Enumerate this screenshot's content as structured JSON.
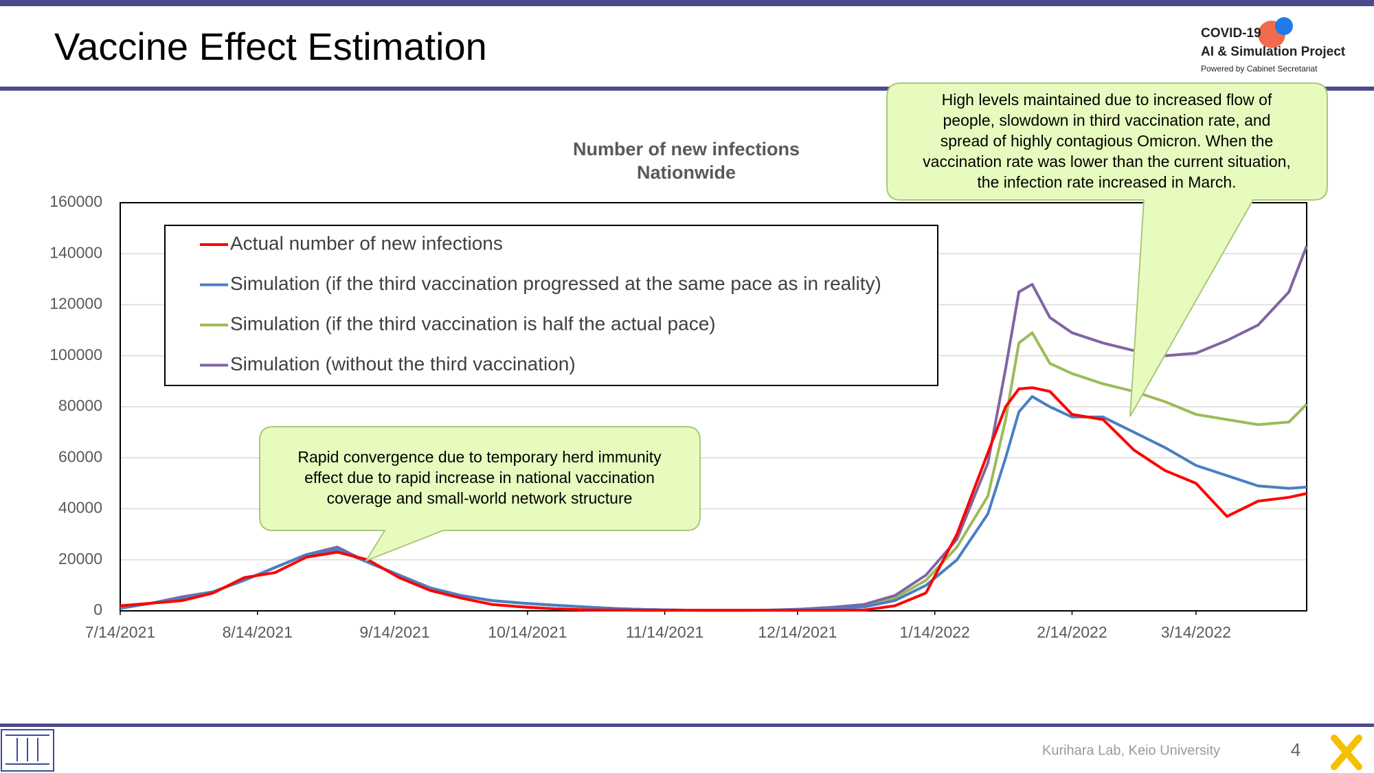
{
  "header": {
    "title": "Vaccine Effect Estimation",
    "logo": [
      "COVID-19",
      "AI & Simulation Project",
      "Powered by Cabinet Secretariat"
    ]
  },
  "footer": {
    "credit": "Kurihara Lab, Keio University",
    "page": "4"
  },
  "annotations": [
    [
      "Rapid convergence due to temporary herd immunity",
      "effect due to rapid increase in national vaccination",
      "coverage and small-world network structure"
    ],
    [
      "High levels maintained due to increased flow of",
      "people, slowdown in third vaccination rate, and",
      "spread of highly contagious Omicron. When the",
      "vaccination rate was lower than the current situation,",
      "the infection rate increased in March."
    ]
  ],
  "chart_data": {
    "type": "line",
    "title": [
      "Number of new infections",
      "Nationwide"
    ],
    "x": [
      "7/14/2021",
      "7/21/2021",
      "7/28/2021",
      "8/4/2021",
      "8/11/2021",
      "8/18/2021",
      "8/25/2021",
      "9/1/2021",
      "9/8/2021",
      "9/15/2021",
      "9/22/2021",
      "9/29/2021",
      "10/6/2021",
      "10/13/2021",
      "10/20/2021",
      "10/27/2021",
      "11/3/2021",
      "11/10/2021",
      "11/17/2021",
      "11/24/2021",
      "12/1/2021",
      "12/8/2021",
      "12/15/2021",
      "12/22/2021",
      "12/29/2021",
      "1/5/2022",
      "1/12/2022",
      "1/19/2022",
      "1/26/2022",
      "1/30/2022",
      "2/2/2022",
      "2/5/2022",
      "2/9/2022",
      "2/14/2022",
      "2/21/2022",
      "2/28/2022",
      "3/7/2022",
      "3/14/2022",
      "3/21/2022",
      "3/28/2022",
      "4/4/2022",
      "4/8/2022"
    ],
    "series": [
      {
        "name": "Actual number of new infections",
        "color": "#ff0000",
        "values": [
          2000,
          3000,
          4000,
          7000,
          13000,
          15000,
          21000,
          23000,
          20000,
          13000,
          8000,
          5000,
          2500,
          1500,
          800,
          400,
          300,
          200,
          200,
          200,
          200,
          200,
          200,
          200,
          300,
          2000,
          7000,
          30000,
          62000,
          80000,
          87000,
          87500,
          86000,
          77000,
          75000,
          63000,
          55000,
          50000,
          37000,
          43000,
          44500,
          46000
        ]
      },
      {
        "name": "Simulation (if the third vaccination progressed at the same pace as in reality)",
        "color": "#4a7fc1",
        "values": [
          1000,
          3000,
          5000,
          7500,
          12000,
          17000,
          22000,
          24000,
          19000,
          14000,
          9000,
          6000,
          4000,
          3000,
          2200,
          1500,
          900,
          500,
          300,
          200,
          200,
          300,
          500,
          1000,
          1500,
          4000,
          10000,
          20000,
          38000,
          60000,
          78000,
          84000,
          80000,
          76000,
          76000,
          70000,
          64000,
          57000,
          53000,
          49000,
          48000,
          48500
        ]
      },
      {
        "name": "Simulation (if the third vaccination is half the actual pace)",
        "color": "#9bbb59",
        "values": [
          1000,
          3000,
          5000,
          7500,
          12000,
          17000,
          22000,
          24000,
          19000,
          14000,
          9000,
          6000,
          4000,
          3000,
          2200,
          1500,
          900,
          500,
          300,
          200,
          200,
          300,
          600,
          1200,
          2000,
          5000,
          12000,
          25000,
          45000,
          75000,
          105000,
          109000,
          97000,
          93000,
          89000,
          86000,
          82000,
          77000,
          75000,
          73000,
          74000,
          81000
        ]
      },
      {
        "name": "Simulation (without the third vaccination)",
        "color": "#8064a2",
        "values": [
          1000,
          3000,
          5500,
          7500,
          12000,
          17000,
          22000,
          25000,
          19000,
          14000,
          9000,
          6000,
          4000,
          3000,
          2200,
          1500,
          900,
          500,
          300,
          200,
          200,
          300,
          700,
          1400,
          2500,
          6000,
          14000,
          28000,
          58000,
          95000,
          125000,
          128000,
          115000,
          109000,
          105000,
          102000,
          100000,
          101000,
          106000,
          112000,
          125000,
          143000
        ]
      }
    ],
    "xlim": [
      "7/14/2021",
      "4/8/2022"
    ],
    "xticks": [
      "7/14/2021",
      "8/14/2021",
      "9/14/2021",
      "10/14/2021",
      "11/14/2021",
      "12/14/2021",
      "1/14/2022",
      "2/14/2022",
      "3/14/2022"
    ],
    "ylim": [
      0,
      160000
    ],
    "yticks": [
      0,
      20000,
      40000,
      60000,
      80000,
      100000,
      120000,
      140000,
      160000
    ],
    "grid": true,
    "legend": "top-left"
  }
}
